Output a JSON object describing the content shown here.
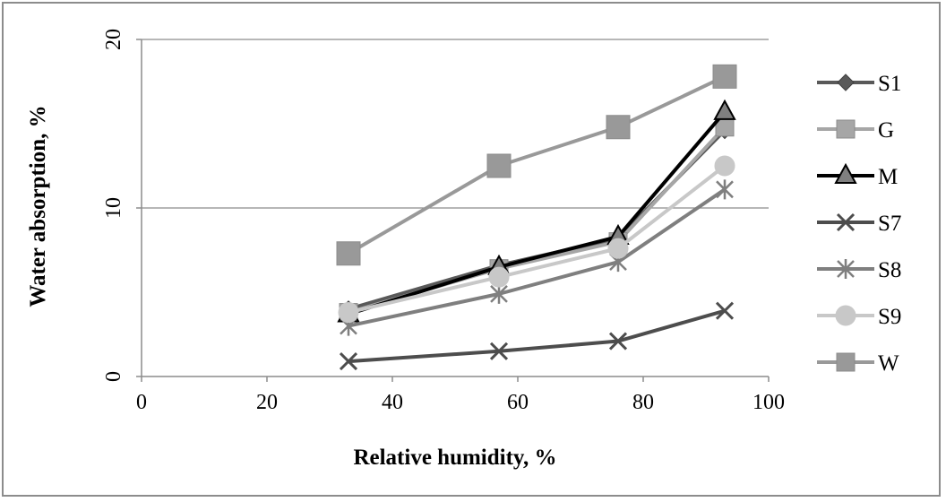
{
  "chart_data": {
    "type": "line",
    "title": "",
    "xlabel": "Relative humidity, %",
    "ylabel": "Water absorption, %",
    "xlim": [
      0,
      100
    ],
    "ylim": [
      0,
      20
    ],
    "xticks": [
      0,
      20,
      40,
      60,
      80,
      100
    ],
    "yticks": [
      0,
      10,
      20
    ],
    "grid": "horizontal",
    "legend_position": "right",
    "x": [
      33,
      57,
      76,
      93
    ],
    "series": [
      {
        "name": "S1",
        "values": [
          4.0,
          6.6,
          8.2,
          14.6
        ],
        "color": "#595959",
        "marker": "diamond"
      },
      {
        "name": "G",
        "values": [
          3.8,
          6.4,
          8.0,
          14.8
        ],
        "color": "#a6a6a6",
        "marker": "square"
      },
      {
        "name": "M",
        "values": [
          3.7,
          6.5,
          8.3,
          15.7
        ],
        "color": "#000000",
        "marker": "triangle"
      },
      {
        "name": "S7",
        "values": [
          0.9,
          1.5,
          2.1,
          3.9
        ],
        "color": "#4d4d4d",
        "marker": "x"
      },
      {
        "name": "S8",
        "values": [
          3.0,
          4.9,
          6.8,
          11.1
        ],
        "color": "#7f7f7f",
        "marker": "star"
      },
      {
        "name": "S9",
        "values": [
          3.8,
          5.9,
          7.6,
          12.5
        ],
        "color": "#c8c8c8",
        "marker": "circle"
      },
      {
        "name": "W",
        "values": [
          7.3,
          12.5,
          14.8,
          17.8
        ],
        "color": "#999999",
        "marker": "square-large"
      }
    ]
  }
}
